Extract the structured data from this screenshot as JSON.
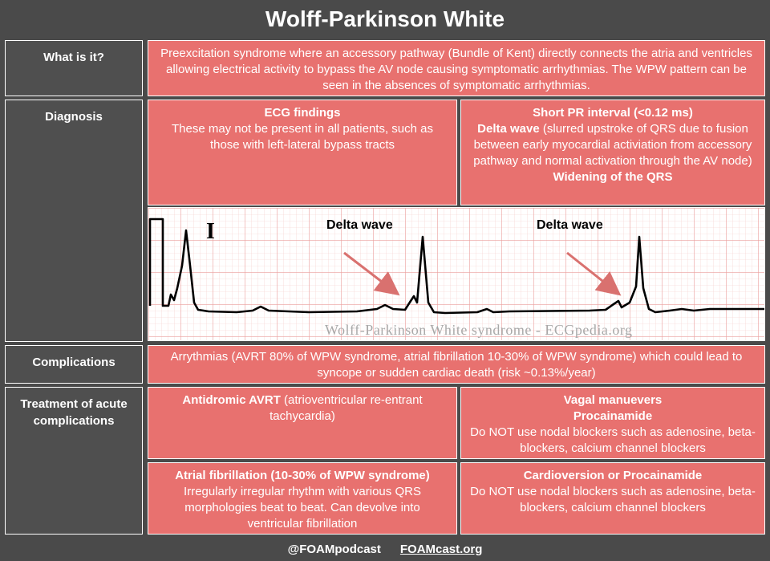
{
  "title": "Wolff-Parkinson White",
  "rows": {
    "what": {
      "label": "What is it?",
      "text": "Preexcitation syndrome where an accessory pathway (Bundle of Kent) directly connects the atria and ventricles allowing electrical activity to bypass the AV node causing symptomatic arrhythmias. The WPW pattern can be seen in the absences of symptomatic arrhythmias."
    },
    "diagnosis": {
      "label": "Diagnosis",
      "left_heading": "ECG findings",
      "left_text": "These may not be present in all patients, such as those with left-lateral bypass tracts",
      "right_line1": "Short PR interval (<0.12 ms)",
      "right_line2_bold": "Delta wave",
      "right_line2_rest": " (slurred upstroke of QRS due to fusion between early myocardial activiation from accessory pathway and normal activation through the AV node)",
      "right_line3": "Widening of the QRS"
    },
    "ecg": {
      "lead": "I",
      "delta_label_1": "Delta wave",
      "delta_label_2": "Delta wave",
      "watermark": "Wolff-Parkinson White syndrome - ECGpedia.org"
    },
    "complications": {
      "label": "Complications",
      "text": "Arrythmias (AVRT 80% of WPW syndrome, atrial fibrillation 10-30% of WPW syndrome) which could lead to syncope or sudden cardiac death (risk ~0.13%/year)"
    },
    "treatment": {
      "label": "Treatment of acute complications",
      "avrt_heading": "Antidromic AVRT",
      "avrt_rest": " (atrioventricular re-entrant tachycardia)",
      "vagal": "Vagal manuevers",
      "procainamide": "Procainamide",
      "nodal_warning_1": "Do NOT use nodal blockers such as adenosine, beta-blockers, calcium channel blockers",
      "afib_heading": "Atrial fibrillation (10-30% of WPW syndrome)",
      "afib_text": "Irregularly irregular rhythm with various QRS morphologies beat to beat. Can devolve into ventricular fibrillation",
      "cardioversion": "Cardioversion or Procainamide",
      "nodal_warning_2": "Do NOT use nodal blockers such as adenosine, beta-blockers, calcium channel blockers"
    }
  },
  "footer": {
    "handle": "@FOAMpodcast",
    "site": "FOAMcast.org"
  },
  "colors": {
    "cell": "#e8716f",
    "label_bg": "#4f4f4f",
    "ecg_grid": "#f2b8b6",
    "arrow": "#d9716f"
  }
}
